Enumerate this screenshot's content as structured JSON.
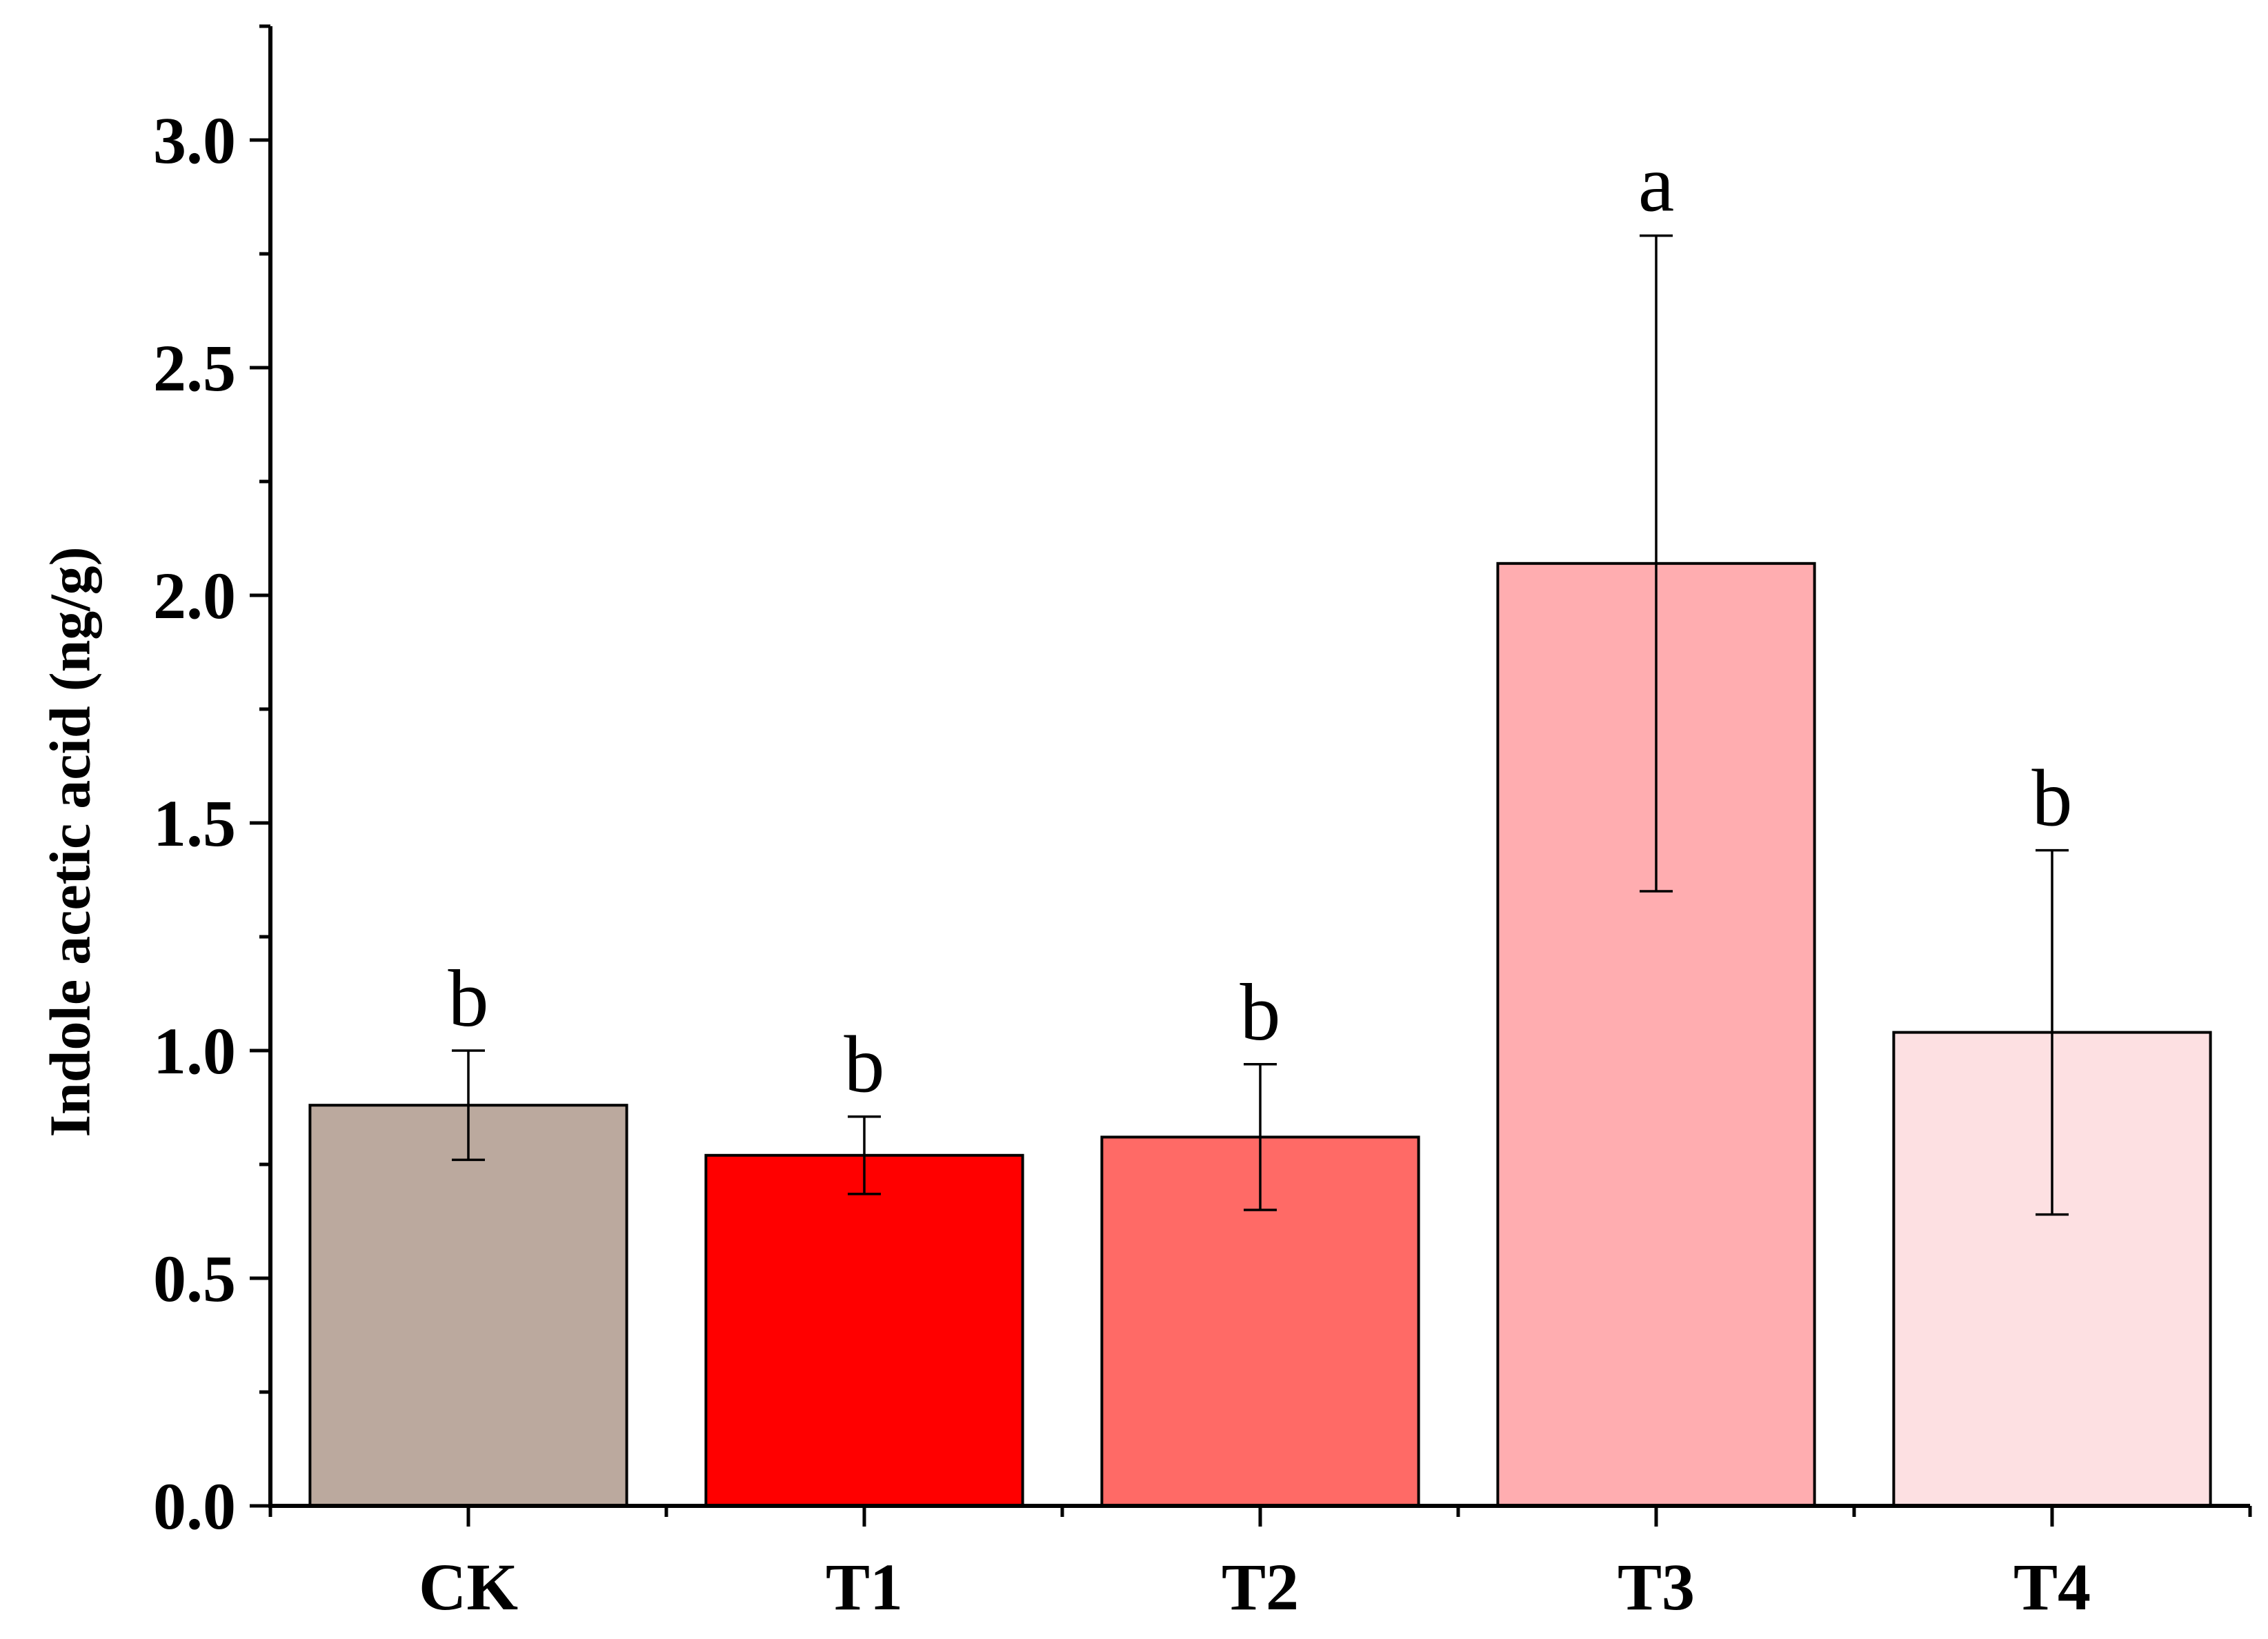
{
  "chart_data": {
    "type": "bar",
    "categories": [
      "CK",
      "T1",
      "T2",
      "T3",
      "T4"
    ],
    "values": [
      0.88,
      0.77,
      0.81,
      2.07,
      1.04
    ],
    "error": [
      0.12,
      0.085,
      0.16,
      0.72,
      0.4
    ],
    "significance": [
      "b",
      "b",
      "b",
      "a",
      "b"
    ],
    "colors": [
      "#bba99e",
      "#ff0000",
      "#ff6a66",
      "#ffadb0",
      "#fde0e2"
    ],
    "title": "",
    "xlabel": "",
    "ylabel": "Indole acetic acid (ng/g)",
    "ylim": [
      0,
      3.25
    ],
    "yticks": [
      "0.0",
      "0.5",
      "1.0",
      "1.5",
      "2.0",
      "2.5",
      "3.0"
    ],
    "grid": false,
    "legend": "none"
  }
}
